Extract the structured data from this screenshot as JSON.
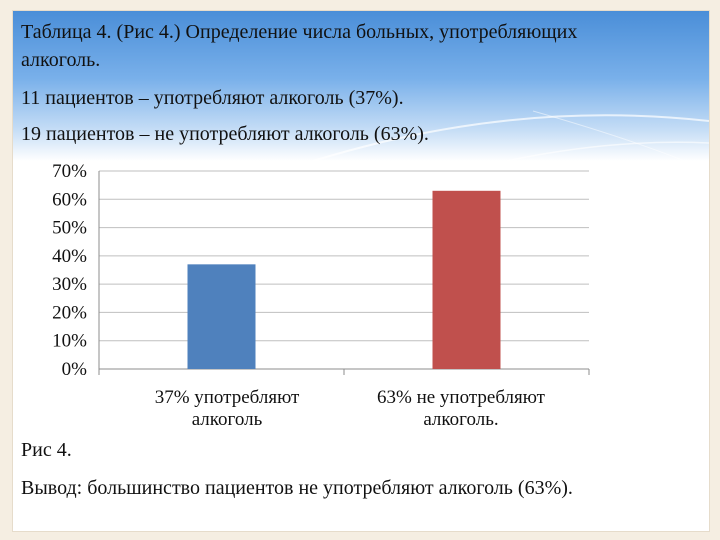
{
  "slide": {
    "title_line1": "Таблица 4. (Рис 4.) Определение числа больных, употребляющих",
    "title_line2": "алкоголь.",
    "line_users": "11 пациентов – употребляют алкоголь (37%).",
    "line_nonusers": "19 пациентов  –  не употребляют алкоголь (63%).",
    "figure_label": "Рис 4.",
    "conclusion": "Вывод: большинство пациентов не употребляют алкоголь (63%)."
  },
  "chart_data": {
    "type": "bar",
    "categories": [
      "37% употребляют алкоголь",
      "63% не употребляют алкоголь."
    ],
    "category_lines": [
      [
        "37% употребляют",
        "алкоголь"
      ],
      [
        "63% не употребляют",
        "алкоголь."
      ]
    ],
    "values": [
      37,
      63
    ],
    "colors": [
      "#4f81bd",
      "#c0504d"
    ],
    "ylim": [
      0,
      70
    ],
    "yticks": [
      "0%",
      "10%",
      "20%",
      "30%",
      "40%",
      "50%",
      "60%",
      "70%"
    ],
    "grid": true
  }
}
